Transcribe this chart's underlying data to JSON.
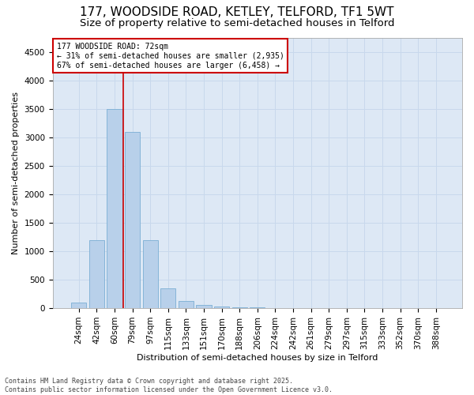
{
  "title_line1": "177, WOODSIDE ROAD, KETLEY, TELFORD, TF1 5WT",
  "title_line2": "Size of property relative to semi-detached houses in Telford",
  "xlabel": "Distribution of semi-detached houses by size in Telford",
  "ylabel": "Number of semi-detached properties",
  "categories": [
    "24sqm",
    "42sqm",
    "60sqm",
    "79sqm",
    "97sqm",
    "115sqm",
    "133sqm",
    "151sqm",
    "170sqm",
    "188sqm",
    "206sqm",
    "224sqm",
    "242sqm",
    "261sqm",
    "279sqm",
    "297sqm",
    "315sqm",
    "333sqm",
    "352sqm",
    "370sqm",
    "388sqm"
  ],
  "values": [
    100,
    1200,
    3500,
    3100,
    1200,
    350,
    130,
    60,
    30,
    20,
    10,
    5,
    3,
    2,
    1,
    1,
    0,
    0,
    0,
    0,
    0
  ],
  "bar_color": "#b8d0ea",
  "bar_edge_color": "#7aaed4",
  "vline_index": 2.5,
  "annotation_text": "177 WOODSIDE ROAD: 72sqm\n← 31% of semi-detached houses are smaller (2,935)\n67% of semi-detached houses are larger (6,458) →",
  "annotation_box_facecolor": "#ffffff",
  "annotation_box_edgecolor": "#cc0000",
  "vline_color": "#cc0000",
  "ylim": [
    0,
    4750
  ],
  "yticks": [
    0,
    500,
    1000,
    1500,
    2000,
    2500,
    3000,
    3500,
    4000,
    4500
  ],
  "grid_color": "#c8d8ec",
  "bg_color": "#dde8f5",
  "footer_text": "Contains HM Land Registry data © Crown copyright and database right 2025.\nContains public sector information licensed under the Open Government Licence v3.0.",
  "title_fontsize": 11,
  "subtitle_fontsize": 9.5,
  "axis_label_fontsize": 8,
  "tick_fontsize": 7.5,
  "annotation_fontsize": 7,
  "footer_fontsize": 6
}
